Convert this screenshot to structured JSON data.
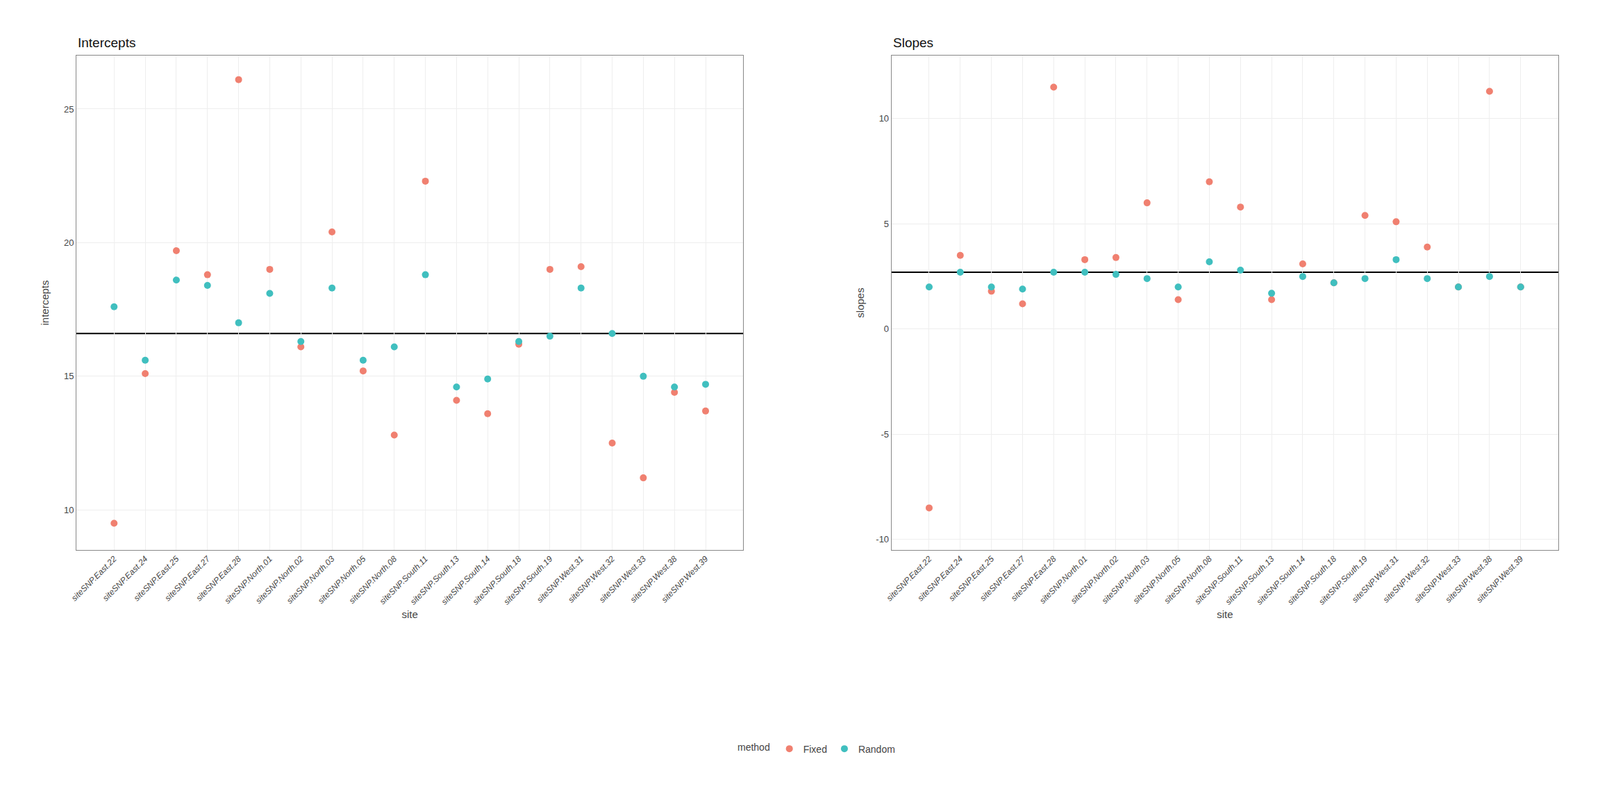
{
  "chart_data": [
    {
      "type": "scatter",
      "title": "Intercepts",
      "x_label": "site",
      "y_label": "intercepts",
      "legend_title": "method",
      "legend": "bottom",
      "grid": true,
      "categories": [
        "siteSNP.East.22",
        "siteSNP.East.24",
        "siteSNP.East.25",
        "siteSNP.East.27",
        "siteSNP.East.28",
        "siteSNP.North.01",
        "siteSNP.North.02",
        "siteSNP.North.03",
        "siteSNP.North.05",
        "siteSNP.North.08",
        "siteSNP.South.11",
        "siteSNP.South.13",
        "siteSNP.South.14",
        "siteSNP.South.18",
        "siteSNP.South.19",
        "siteSNP.West.31",
        "siteSNP.West.32",
        "siteSNP.West.33",
        "siteSNP.West.38",
        "siteSNP.West.39"
      ],
      "series": [
        {
          "name": "Fixed",
          "color": "#F08070",
          "marker": "circle",
          "values": [
            9.5,
            15.1,
            19.7,
            18.8,
            26.1,
            19.0,
            16.1,
            20.4,
            15.2,
            12.8,
            22.3,
            14.1,
            13.6,
            16.2,
            19.0,
            19.1,
            12.5,
            11.2,
            14.4,
            13.7
          ]
        },
        {
          "name": "Random",
          "color": "#40BFBF",
          "marker": "circle",
          "values": [
            17.6,
            15.6,
            18.6,
            18.4,
            17.0,
            18.1,
            16.3,
            18.3,
            15.6,
            16.1,
            18.8,
            14.6,
            14.9,
            16.3,
            16.5,
            18.3,
            16.6,
            15.0,
            14.6,
            14.7
          ]
        }
      ],
      "reference_line": 16.6,
      "ylim": [
        8.5,
        27.0
      ],
      "yticks": [
        10,
        15,
        20,
        25
      ]
    },
    {
      "type": "scatter",
      "title": "Slopes",
      "x_label": "site",
      "y_label": "slopes",
      "grid": true,
      "categories": [
        "siteSNP.East.22",
        "siteSNP.East.24",
        "siteSNP.East.25",
        "siteSNP.East.27",
        "siteSNP.East.28",
        "siteSNP.North.01",
        "siteSNP.North.02",
        "siteSNP.North.03",
        "siteSNP.North.05",
        "siteSNP.North.08",
        "siteSNP.South.11",
        "siteSNP.South.13",
        "siteSNP.South.14",
        "siteSNP.South.18",
        "siteSNP.South.19",
        "siteSNP.West.31",
        "siteSNP.West.32",
        "siteSNP.West.33",
        "siteSNP.West.38",
        "siteSNP.West.39"
      ],
      "series": [
        {
          "name": "Fixed",
          "color": "#F08070",
          "marker": "circle",
          "values": [
            -8.5,
            3.5,
            1.8,
            1.2,
            11.5,
            3.3,
            3.4,
            6.0,
            1.4,
            7.0,
            5.8,
            1.4,
            3.1,
            2.2,
            5.4,
            5.1,
            3.9,
            2.0,
            11.3,
            2.0
          ]
        },
        {
          "name": "Random",
          "color": "#40BFBF",
          "marker": "circle",
          "values": [
            2.0,
            2.7,
            2.0,
            1.9,
            2.7,
            2.7,
            2.6,
            2.4,
            2.0,
            3.2,
            2.8,
            1.7,
            2.5,
            2.2,
            2.4,
            3.3,
            2.4,
            2.0,
            2.5,
            2.0
          ]
        }
      ],
      "reference_line": 2.7,
      "ylim": [
        -10.5,
        13.0
      ],
      "yticks": [
        -10,
        -5,
        0,
        5,
        10
      ]
    }
  ]
}
